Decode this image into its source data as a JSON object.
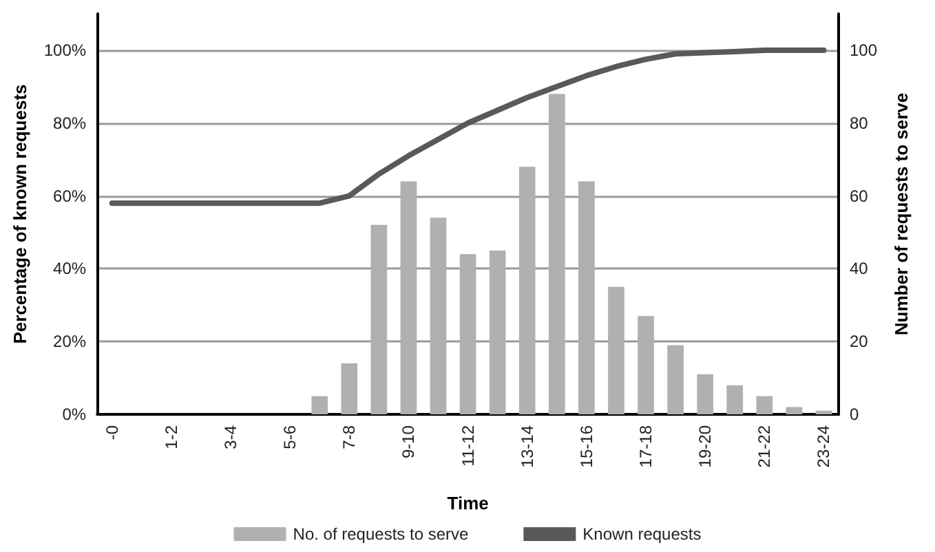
{
  "chart_data": {
    "type": "bar",
    "xlabel": "Time",
    "ylabel": "Percentage of known requests",
    "y2label": "Number of requests to serve",
    "categories": [
      "-0",
      null,
      "1-2",
      null,
      "3-4",
      null,
      "5-6",
      null,
      "7-8",
      null,
      "9-10",
      null,
      "11-12",
      null,
      "13-14",
      null,
      "15-16",
      null,
      "17-18",
      null,
      "19-20",
      null,
      "21-22",
      null,
      "23-24"
    ],
    "series": [
      {
        "name": "No. of requests to serve",
        "axis": "y2",
        "color": "#b0b0b0",
        "values": [
          0,
          0,
          0,
          0,
          0,
          0,
          0,
          5,
          14,
          52,
          64,
          54,
          44,
          45,
          68,
          88,
          64,
          35,
          27,
          19,
          11,
          8,
          5,
          2,
          1
        ]
      },
      {
        "name": "Known requests",
        "type": "line",
        "color": "#595959",
        "values": [
          58,
          58,
          58,
          58,
          58,
          58,
          58,
          58,
          60,
          66,
          71,
          75.5,
          80,
          83.5,
          87,
          90,
          93,
          95.5,
          97.5,
          99,
          99.3,
          99.6,
          100,
          100,
          100
        ]
      }
    ],
    "ylim": [
      0,
      110
    ],
    "yticks": [
      {
        "value": 0,
        "label": "0%"
      },
      {
        "value": 20,
        "label": "20%"
      },
      {
        "value": 40,
        "label": "40%"
      },
      {
        "value": 60,
        "label": "60%"
      },
      {
        "value": 80,
        "label": "80%"
      },
      {
        "value": 100,
        "label": "100%"
      }
    ],
    "y2lim": [
      0,
      110
    ],
    "y2ticks": [
      0,
      20,
      40,
      60,
      80,
      100
    ],
    "grid": "y",
    "legend": "bottom",
    "marker": "none",
    "line_style": "solid"
  }
}
